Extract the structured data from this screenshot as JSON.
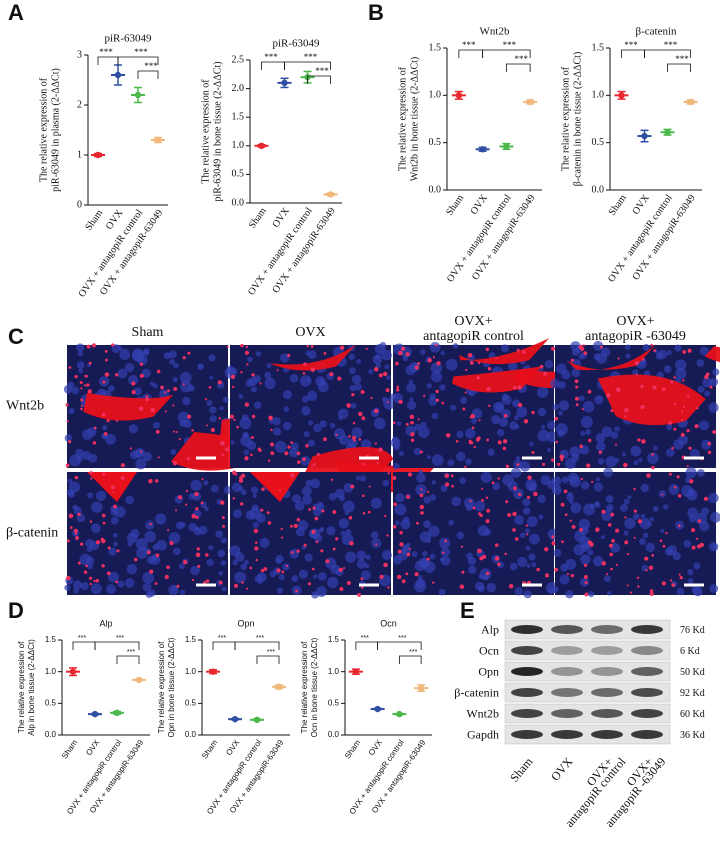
{
  "panel_labels": [
    "A",
    "B",
    "C",
    "D",
    "E"
  ],
  "chart_data": [
    {
      "type": "dot",
      "title": "piR-63049",
      "ylabel": [
        "The relative expression of",
        "piR-63049 in plasma (2-ΔΔCt)"
      ],
      "categories": [
        "Sham",
        "OVX",
        "OVX + antagopiR control",
        "OVX + antagopiR-63049"
      ],
      "values": [
        1.0,
        2.6,
        2.2,
        1.3
      ],
      "errors": [
        0.03,
        0.2,
        0.15,
        0.05
      ],
      "colors": [
        "#e8262d",
        "#2e4fa3",
        "#4cb84c",
        "#f0b77a"
      ],
      "ylim": [
        0,
        3
      ],
      "yticks": [
        0,
        1,
        2,
        3
      ],
      "significance": [
        {
          "pair": [
            0,
            1
          ],
          "label": "***"
        },
        {
          "pair": [
            1,
            3
          ],
          "label": "***"
        },
        {
          "pair": [
            2,
            3
          ],
          "label": "***"
        }
      ]
    },
    {
      "type": "dot",
      "title": "piR-63049",
      "ylabel": [
        "The relative expression of",
        "piR-63049 in bone tissue (2-ΔΔCt)"
      ],
      "categories": [
        "Sham",
        "OVX",
        "OVX + antagopiR control",
        "OVX + antagopiR-63049"
      ],
      "values": [
        1.0,
        2.1,
        2.2,
        0.15
      ],
      "errors": [
        0.02,
        0.08,
        0.1,
        0.02
      ],
      "colors": [
        "#e8262d",
        "#2e4fa3",
        "#4cb84c",
        "#f0b77a"
      ],
      "ylim": [
        0,
        2.5
      ],
      "yticks": [
        {
          "value": 0,
          "label": "0.0"
        },
        0.5,
        {
          "value": 1,
          "label": "1.0"
        },
        1.5,
        {
          "value": 2,
          "label": "2.0"
        },
        2.5
      ],
      "significance": [
        {
          "pair": [
            0,
            1
          ],
          "label": "***"
        },
        {
          "pair": [
            1,
            3
          ],
          "label": "***"
        },
        {
          "pair": [
            2,
            3
          ],
          "label": "***"
        }
      ]
    },
    {
      "type": "dot",
      "title": "Wnt2b",
      "ylabel": [
        "The relative expression of",
        "Wnt2b in bone tissue (2-ΔΔCt)"
      ],
      "categories": [
        "Sham",
        "OVX",
        "OVX + antagopiR control",
        "OVX + antagopiR-63049"
      ],
      "values": [
        1.0,
        0.43,
        0.46,
        0.93
      ],
      "errors": [
        0.04,
        0.02,
        0.03,
        0.02
      ],
      "colors": [
        "#e8262d",
        "#2e4fa3",
        "#4cb84c",
        "#f0b77a"
      ],
      "ylim": [
        0,
        1.5
      ],
      "yticks": [
        {
          "value": 0,
          "label": "0.0"
        },
        0.5,
        {
          "value": 1,
          "label": "1.0"
        },
        1.5
      ],
      "significance": [
        {
          "pair": [
            0,
            1
          ],
          "label": "***"
        },
        {
          "pair": [
            1,
            3
          ],
          "label": "***"
        },
        {
          "pair": [
            2,
            3
          ],
          "label": "***"
        }
      ]
    },
    {
      "type": "dot",
      "title": "β-catenin",
      "ylabel": [
        "The relative expression of",
        "β-catenin in bone tissue (2-ΔΔCt)"
      ],
      "categories": [
        "Sham",
        "OVX",
        "OVX + antagopiR control",
        "OVX + antagopiR-63049"
      ],
      "values": [
        1.0,
        0.57,
        0.61,
        0.93
      ],
      "errors": [
        0.04,
        0.06,
        0.03,
        0.02
      ],
      "colors": [
        "#e8262d",
        "#2e4fa3",
        "#4cb84c",
        "#f0b77a"
      ],
      "ylim": [
        0,
        1.5
      ],
      "yticks": [
        {
          "value": 0,
          "label": "0.0"
        },
        0.5,
        {
          "value": 1,
          "label": "1.0"
        },
        1.5
      ],
      "significance": [
        {
          "pair": [
            0,
            1
          ],
          "label": "***"
        },
        {
          "pair": [
            1,
            3
          ],
          "label": "***"
        },
        {
          "pair": [
            2,
            3
          ],
          "label": "***"
        }
      ]
    },
    {
      "type": "dot",
      "title": "Alp",
      "ylabel": [
        "The relative expression of",
        "Alp in bone tissue (2-ΔΔCt)"
      ],
      "categories": [
        "Sham",
        "OVX",
        "OVX + antagopiR control",
        "OVX + antagopiR-63049"
      ],
      "values": [
        1.0,
        0.33,
        0.35,
        0.87
      ],
      "errors": [
        0.06,
        0.01,
        0.02,
        0.01
      ],
      "colors": [
        "#e8262d",
        "#2e4fa3",
        "#4cb84c",
        "#f0b77a"
      ],
      "ylim": [
        0,
        1.5
      ],
      "yticks": [
        {
          "value": 0,
          "label": "0.0"
        },
        0.5,
        {
          "value": 1,
          "label": "1.0"
        },
        1.5
      ],
      "significance": [
        {
          "pair": [
            0,
            1
          ],
          "label": "***"
        },
        {
          "pair": [
            1,
            3
          ],
          "label": "***"
        },
        {
          "pair": [
            2,
            3
          ],
          "label": "***"
        }
      ]
    },
    {
      "type": "dot",
      "title": "Opn",
      "ylabel": [
        "The relative expression of",
        "Opn in bone tissue (2-ΔΔCt)"
      ],
      "categories": [
        "Sham",
        "OVX",
        "OVX + antagopiR control",
        "OVX + antagopiR-63049"
      ],
      "values": [
        1.0,
        0.25,
        0.24,
        0.76
      ],
      "errors": [
        0.03,
        0.01,
        0.01,
        0.03
      ],
      "colors": [
        "#e8262d",
        "#2e4fa3",
        "#4cb84c",
        "#f0b77a"
      ],
      "ylim": [
        0,
        1.5
      ],
      "yticks": [
        {
          "value": 0,
          "label": "0.0"
        },
        0.5,
        {
          "value": 1,
          "label": "1.0"
        },
        1.5
      ],
      "significance": [
        {
          "pair": [
            0,
            1
          ],
          "label": "***"
        },
        {
          "pair": [
            1,
            3
          ],
          "label": "***"
        },
        {
          "pair": [
            2,
            3
          ],
          "label": "***"
        }
      ]
    },
    {
      "type": "dot",
      "title": "Ocn",
      "ylabel": [
        "The relative expression of",
        "Ocn in bone tissue (2-ΔΔCt)"
      ],
      "categories": [
        "Sham",
        "OVX",
        "OVX + antagopiR control",
        "OVX + antagopiR-63049"
      ],
      "values": [
        1.0,
        0.41,
        0.33,
        0.74
      ],
      "errors": [
        0.04,
        0.01,
        0.01,
        0.05
      ],
      "colors": [
        "#e8262d",
        "#2e4fa3",
        "#4cb84c",
        "#f0b77a"
      ],
      "ylim": [
        0,
        1.5
      ],
      "yticks": [
        {
          "value": 0,
          "label": "0.0"
        },
        0.5,
        {
          "value": 1,
          "label": "1.0"
        },
        1.5
      ],
      "significance": [
        {
          "pair": [
            0,
            1
          ],
          "label": "***"
        },
        {
          "pair": [
            1,
            3
          ],
          "label": "***"
        },
        {
          "pair": [
            2,
            3
          ],
          "label": "***"
        }
      ]
    }
  ],
  "imaging": {
    "columns": [
      [
        "Sham"
      ],
      [
        "OVX"
      ],
      [
        "OVX+",
        "antagopiR control"
      ],
      [
        "OVX+",
        "antagopiR -63049"
      ]
    ],
    "rows": [
      "Wnt2b",
      "β-catenin"
    ]
  },
  "blot": {
    "proteins": [
      "Alp",
      "Ocn",
      "Opn",
      "β-catenin",
      "Wnt2b",
      "Gapdh"
    ],
    "sizes": [
      "76 Kd",
      "6 Kd",
      "50 Kd",
      "92 Kd",
      "60 Kd",
      "36 Kd"
    ],
    "lanes": [
      [
        "Sham"
      ],
      [
        "OVX"
      ],
      [
        "OVX+",
        "antagopiR control"
      ],
      [
        "OVX+",
        "antagopiR -63049"
      ]
    ]
  }
}
